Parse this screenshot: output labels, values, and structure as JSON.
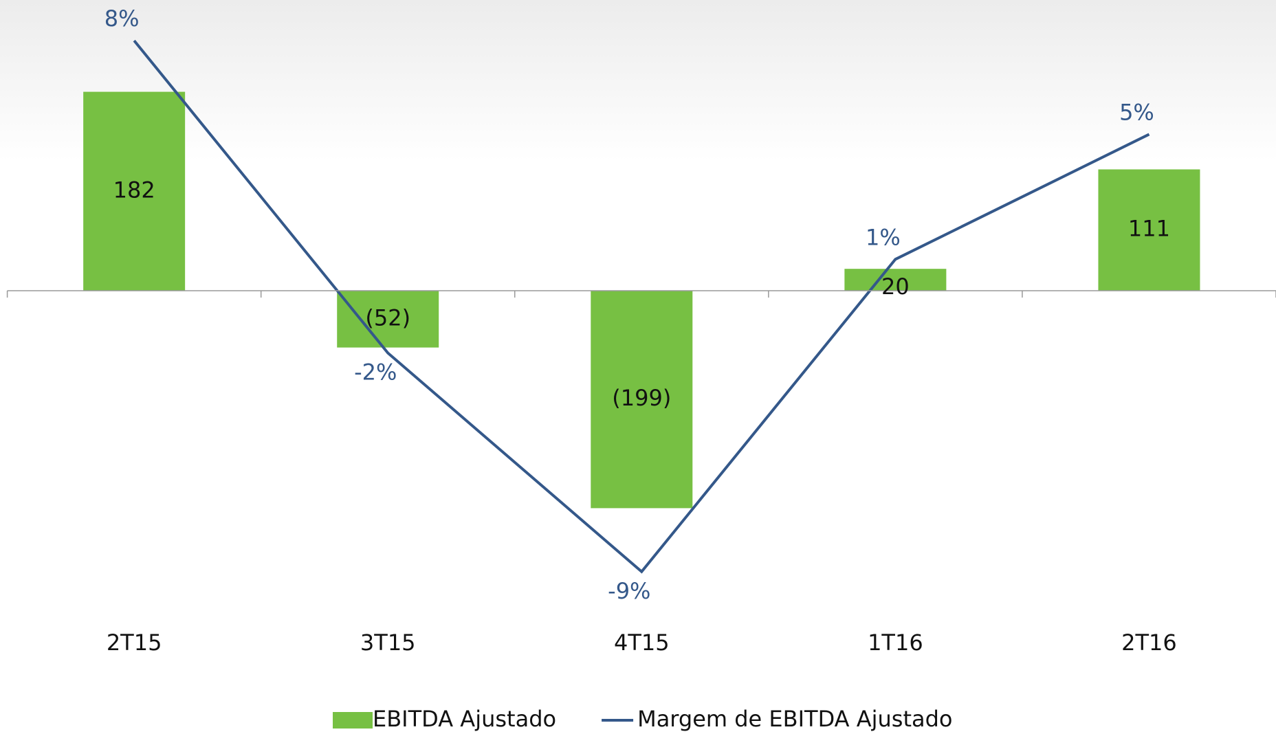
{
  "chart_data": {
    "type": "bar",
    "categories": [
      "2T15",
      "3T15",
      "4T15",
      "1T16",
      "2T16"
    ],
    "series": [
      {
        "name": "EBITDA Ajustado",
        "type": "bar",
        "color": "#77c043",
        "values": [
          182,
          -52,
          -199,
          20,
          111
        ],
        "value_labels": [
          "182",
          "(52)",
          "(199)",
          "20",
          "111"
        ]
      },
      {
        "name": "Margem de EBITDA Ajustado",
        "type": "line",
        "axis": "y2",
        "color": "#34588a",
        "values": [
          8,
          -2,
          -9,
          1,
          5
        ],
        "value_labels": [
          "8%",
          "-2%",
          "-9%",
          "1%",
          "5%"
        ]
      }
    ],
    "ylim": [
      -300,
      266
    ],
    "y2lim": [
      -10.5,
      9.3
    ],
    "legend": "bottom"
  }
}
